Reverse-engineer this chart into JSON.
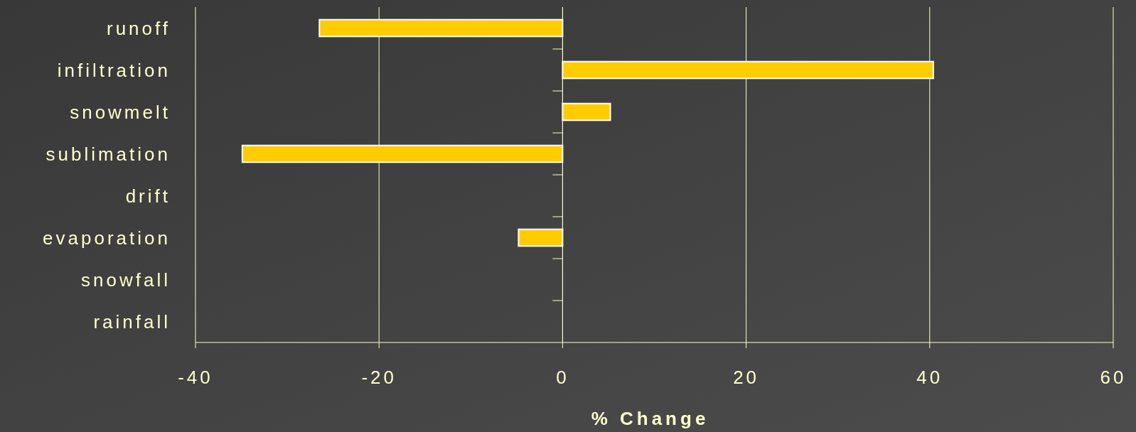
{
  "chart_data": {
    "type": "bar",
    "orientation": "horizontal",
    "xlabel": "% Change",
    "categories": [
      "runoff",
      "infiltration",
      "snowmelt",
      "sublimation",
      "drift",
      "evaporation",
      "snowfall",
      "rainfall"
    ],
    "values": [
      -26.5,
      40.4,
      5.2,
      -34.9,
      0,
      -4.8,
      0,
      0
    ],
    "color": "#ffcc00",
    "xlim": [
      -40,
      60
    ],
    "xticks": [
      -40,
      -20,
      0,
      20,
      40,
      60
    ],
    "grid": "x"
  }
}
